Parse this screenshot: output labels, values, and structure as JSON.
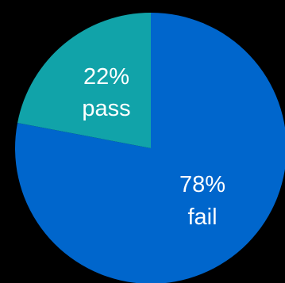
{
  "chart_data": {
    "type": "pie",
    "slices": [
      {
        "category": "fail",
        "value": 78,
        "percent_label": "78%",
        "color": "#0066cc"
      },
      {
        "category": "pass",
        "value": 22,
        "percent_label": "22%",
        "color": "#11a3a9"
      }
    ],
    "background": "#000000",
    "label_color": "#ffffff"
  }
}
